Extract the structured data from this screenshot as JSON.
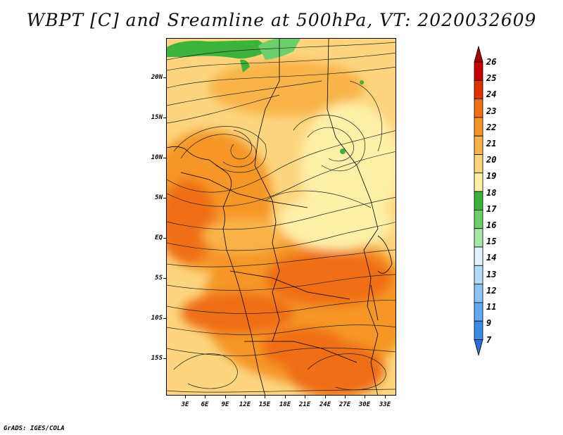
{
  "title": "WBPT [C] and Sreamline at 500hPa, VT: 2020032609",
  "credit": "GrADS: IGES/COLA",
  "latitude_labels": [
    "20N",
    "15N",
    "10N",
    "5N",
    "EQ",
    "5S",
    "10S",
    "15S"
  ],
  "longitude_labels": [
    "3E",
    "6E",
    "9E",
    "12E",
    "15E",
    "18E",
    "21E",
    "24E",
    "27E",
    "30E",
    "33E"
  ],
  "colorbar": {
    "labels": [
      "26",
      "25",
      "24",
      "23",
      "22",
      "21",
      "20",
      "19",
      "18",
      "17",
      "16",
      "15",
      "14",
      "13",
      "12",
      "11",
      "9",
      "7"
    ],
    "colors": [
      "#a50000",
      "#c80000",
      "#e13200",
      "#f06e14",
      "#f59628",
      "#f9b448",
      "#fcd57e",
      "#fff0a8",
      "#3cb43c",
      "#6ccf6c",
      "#a5e6a5",
      "#e1f5ff",
      "#b4dcff",
      "#8cc3f5",
      "#64a8f0",
      "#3c8ce6",
      "#2a6ede"
    ]
  }
}
